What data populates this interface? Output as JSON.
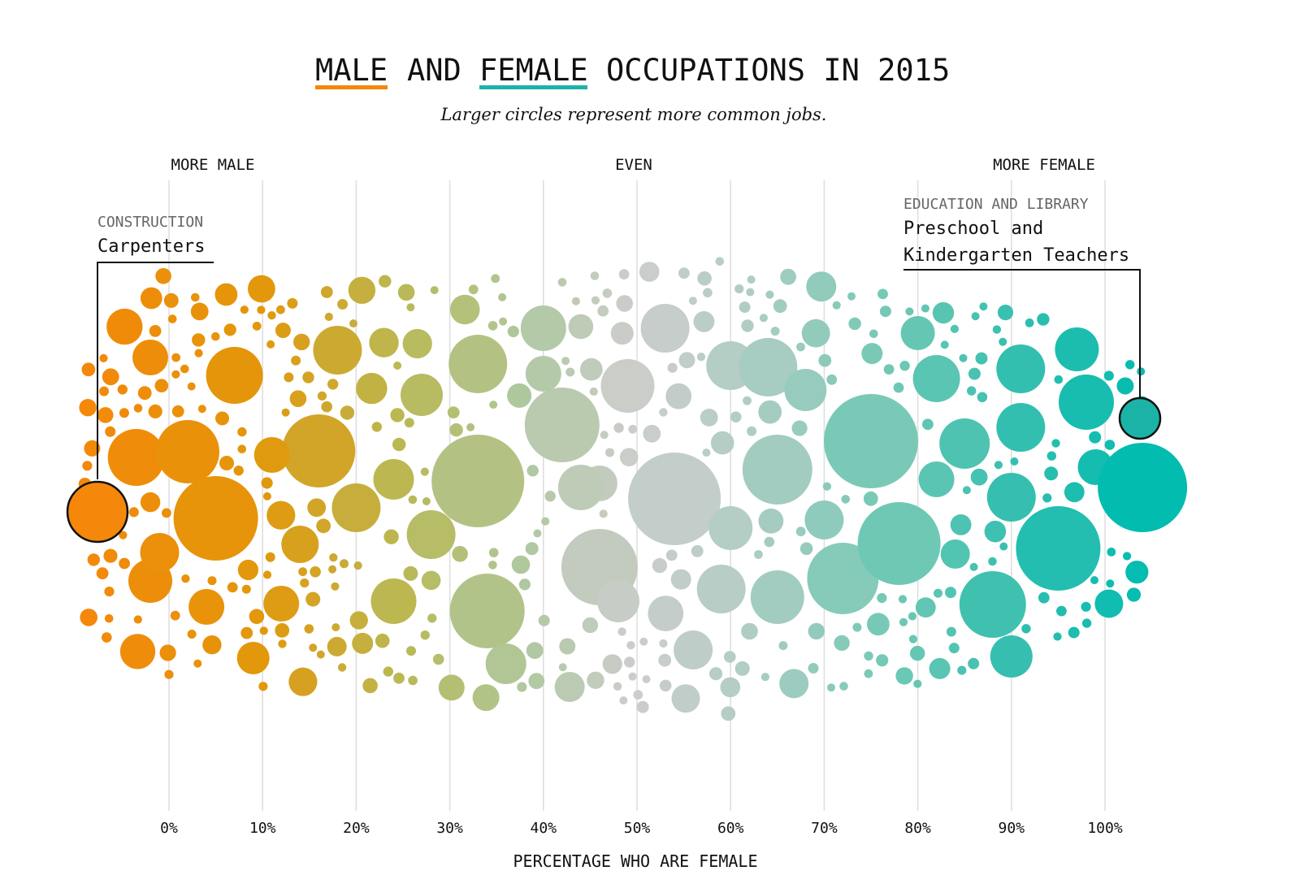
{
  "chart_data": {
    "type": "scatter",
    "title_parts": [
      "MALE",
      "AND",
      "FEMALE",
      "OCCUPATIONS IN 2015"
    ],
    "subtitle": "Larger circles represent more common jobs.",
    "direction_labels": {
      "left": "MORE MALE",
      "center": "EVEN",
      "right": "MORE FEMALE"
    },
    "xlabel": "PERCENTAGE WHO ARE FEMALE",
    "xlim": [
      0,
      100
    ],
    "x_ticks": [
      0,
      10,
      20,
      30,
      40,
      50,
      60,
      70,
      80,
      90,
      100
    ],
    "x_tick_labels": [
      "0%",
      "10%",
      "20%",
      "30%",
      "40%",
      "50%",
      "60%",
      "70%",
      "80%",
      "90%",
      "100%"
    ],
    "grid": true,
    "colors": {
      "male": "#f5870a",
      "mid_male": "#d8a52a",
      "even": "#cfcfcf",
      "mid_female": "#8fc9b4",
      "female": "#00bcb0",
      "male_underline": "#f5870a",
      "female_underline": "#1bb3a8"
    },
    "annotations": [
      {
        "category": "CONSTRUCTION",
        "label": "Carpenters",
        "pct_female": -8
      },
      {
        "category": "EDUCATION AND LIBRARY",
        "label_lines": [
          "Preschool and",
          "Kindergarten Teachers"
        ],
        "pct_female": 105
      }
    ]
  }
}
